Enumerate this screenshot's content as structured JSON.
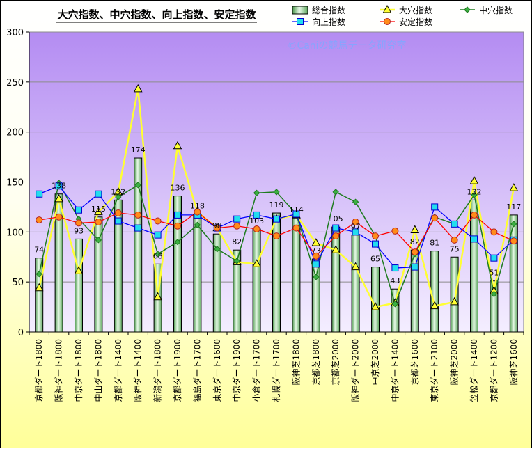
{
  "chart_data": {
    "type": "bar",
    "title": "大穴指数、中穴指数、向上指数、安定指数",
    "watermark": "©Caniの競馬データ研究室",
    "categories": [
      "京都ダート1800",
      "阪神ダート1800",
      "中京ダート1800",
      "中山ダート1800",
      "京都ダート1400",
      "阪神ダート1400",
      "新潟ダート1800",
      "京都ダート1900",
      "福島ダート1700",
      "東京ダート1600",
      "中京ダート1900",
      "小倉ダート1700",
      "札幌ダート1700",
      "阪神芝1800",
      "京都芝1800",
      "京都芝2000",
      "阪神ダート2000",
      "中京芝2000",
      "中京ダート1400",
      "京都芝1600",
      "東京ダート2100",
      "阪神芝2000",
      "笠松ダート1400",
      "京都ダート1200",
      "阪神芝1600"
    ],
    "ylim": [
      0,
      300
    ],
    "yticks": [
      0,
      50,
      100,
      150,
      200,
      250,
      300
    ],
    "grid": true,
    "legend_position": "top-right",
    "series": [
      {
        "name": "総合指数",
        "type": "bar",
        "color": "#66BB66",
        "values": [
          74,
          138,
          93,
          115,
          132,
          174,
          68,
          136,
          118,
          98,
          82,
          103,
          119,
          114,
          73,
          105,
          97,
          65,
          43,
          82,
          81,
          75,
          132,
          51,
          117
        ]
      },
      {
        "name": "大穴指数",
        "type": "line",
        "color": "#FFFF33",
        "values": [
          44,
          133,
          61,
          120,
          140,
          243,
          35,
          186,
          120,
          104,
          70,
          68,
          113,
          117,
          89,
          82,
          65,
          25,
          29,
          102,
          26,
          30,
          151,
          41,
          144
        ]
      },
      {
        "name": "中穴指数",
        "type": "line",
        "color": "#1E7B1E",
        "values": [
          58,
          149,
          113,
          92,
          135,
          147,
          78,
          90,
          107,
          83,
          71,
          139,
          140,
          118,
          55,
          140,
          130,
          96,
          28,
          78,
          115,
          108,
          137,
          38,
          108
        ]
      },
      {
        "name": "向上指数",
        "type": "line",
        "color": "#0000FF",
        "values": [
          138,
          146,
          122,
          138,
          111,
          104,
          97,
          117,
          117,
          104,
          113,
          117,
          113,
          118,
          68,
          104,
          100,
          88,
          64,
          65,
          125,
          108,
          93,
          74,
          92
        ]
      },
      {
        "name": "安定指数",
        "type": "line",
        "color": "#FF0000",
        "values": [
          112,
          115,
          109,
          110,
          119,
          117,
          111,
          106,
          120,
          104,
          106,
          103,
          96,
          104,
          76,
          96,
          110,
          96,
          101,
          80,
          114,
          92,
          117,
          100,
          91
        ]
      }
    ]
  }
}
